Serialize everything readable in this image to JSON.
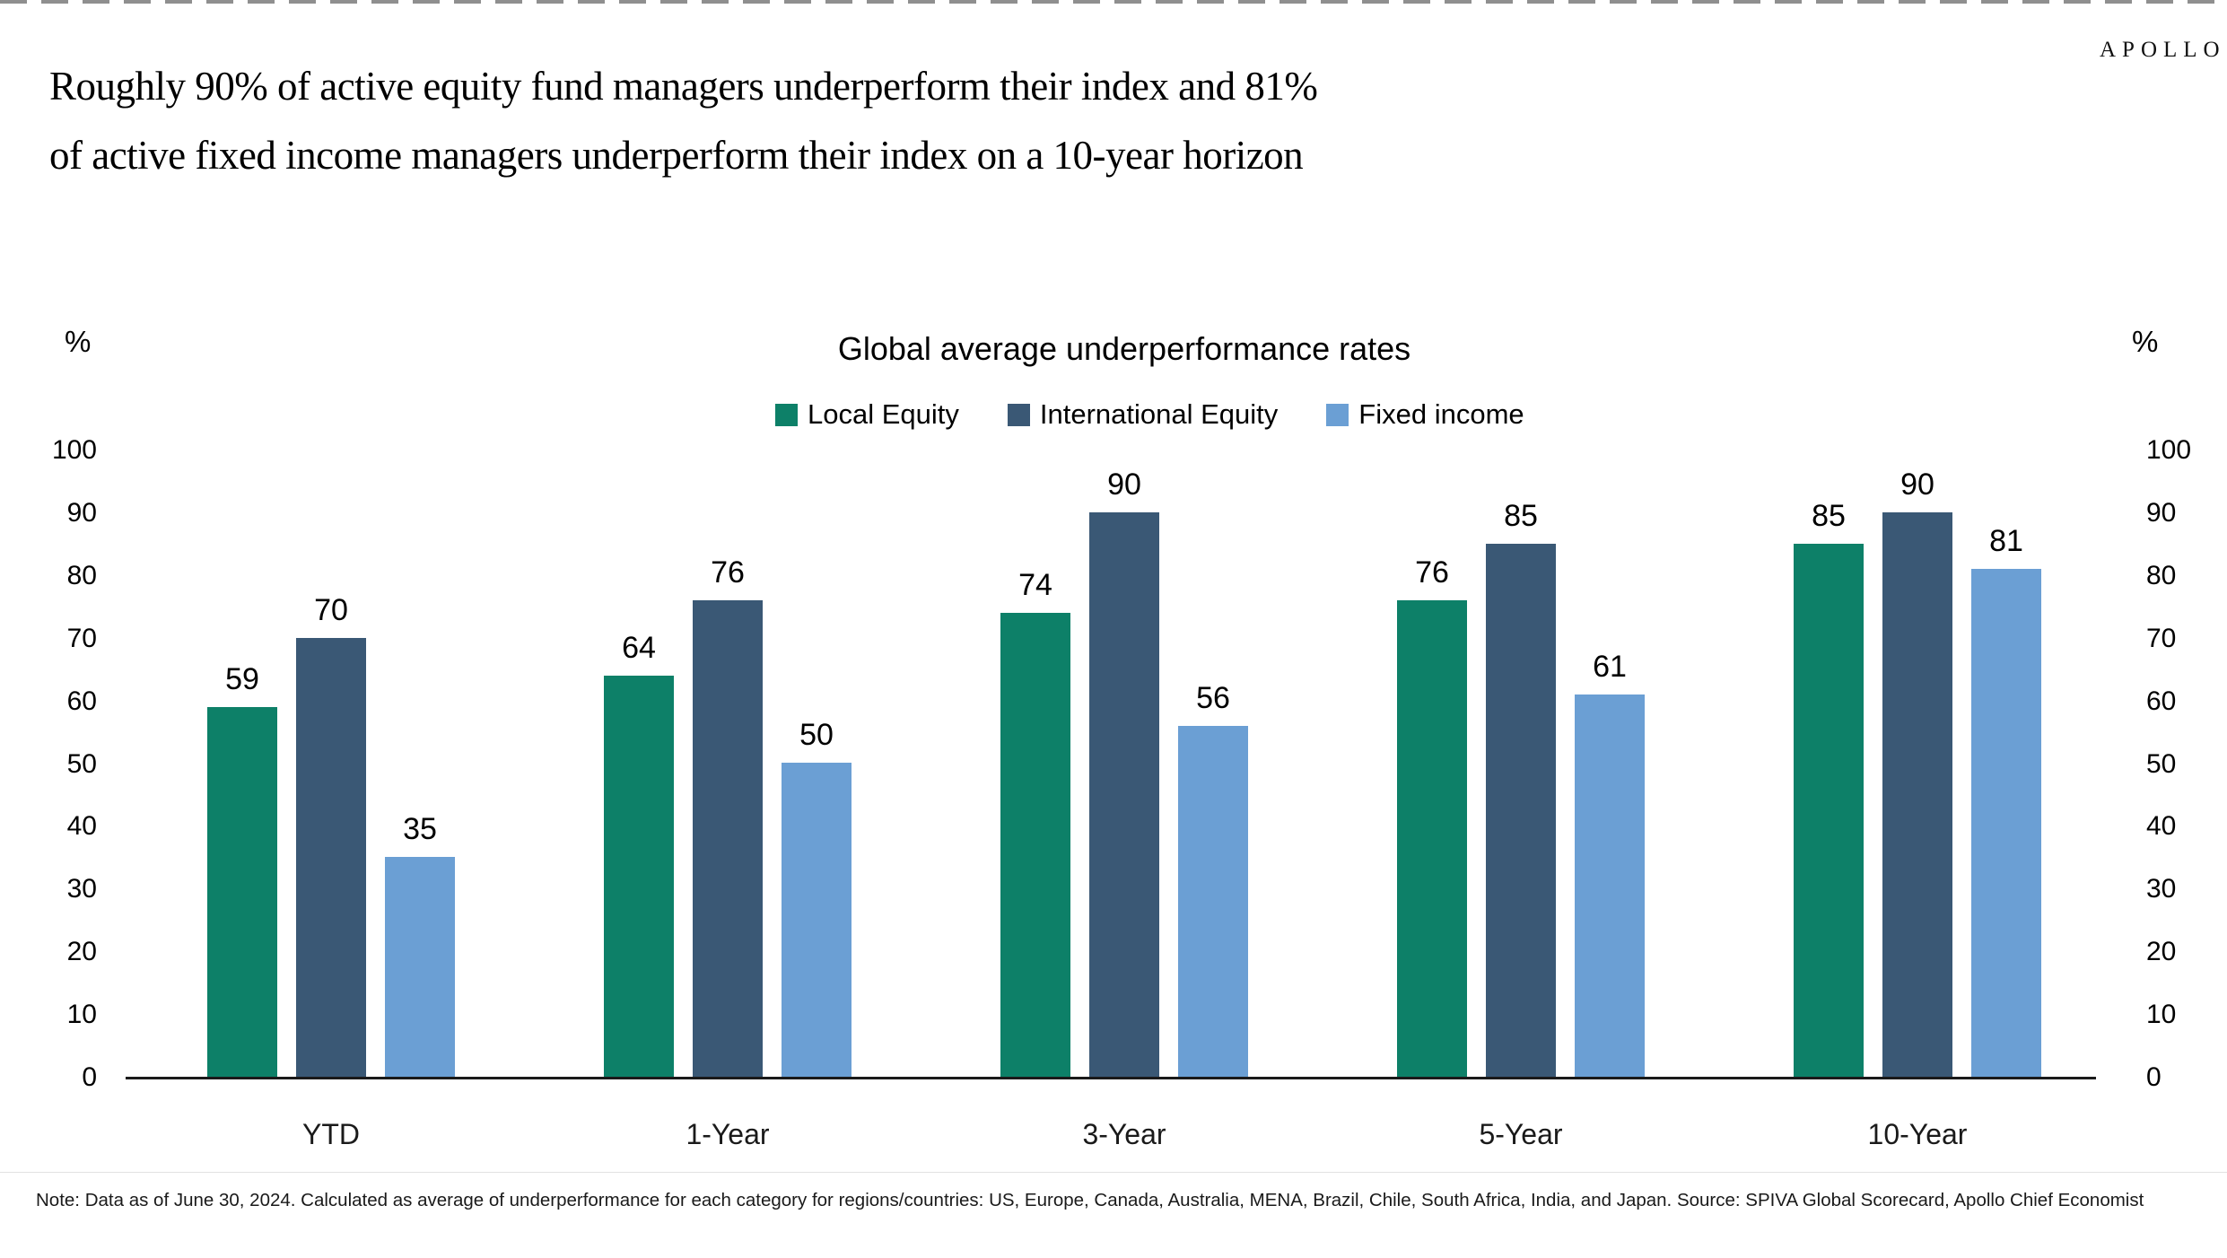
{
  "header": {
    "logo": "APOLLO"
  },
  "title": {
    "line1": "Roughly 90% of active equity fund managers underperform their index and 81%",
    "line2": "of active fixed income managers underperform their index on a 10-year horizon"
  },
  "chart_data": {
    "type": "bar",
    "title": "Global average underperformance rates",
    "unit_left": "%",
    "unit_right": "%",
    "categories": [
      "YTD",
      "1-Year",
      "3-Year",
      "5-Year",
      "10-Year"
    ],
    "series": [
      {
        "name": "Local Equity",
        "color": "#0d8068",
        "values": [
          59,
          64,
          74,
          76,
          85
        ]
      },
      {
        "name": "International Equity",
        "color": "#3a5875",
        "values": [
          70,
          76,
          90,
          85,
          90
        ]
      },
      {
        "name": "Fixed income",
        "color": "#6b9fd4",
        "values": [
          35,
          50,
          56,
          61,
          81
        ]
      }
    ],
    "ylim": [
      0,
      100
    ],
    "yticks": [
      0,
      10,
      20,
      30,
      40,
      50,
      60,
      70,
      80,
      90,
      100
    ],
    "grid": false,
    "legend_position": "top-center",
    "value_labels": true
  },
  "footnote": "Note: Data as of June 30, 2024. Calculated as average of underperformance for each category for regions/countries: US, Europe, Canada, Australia, MENA, Brazil, Chile, South Africa, India, and Japan. Source: SPIVA Global Scorecard, Apollo Chief Economist"
}
